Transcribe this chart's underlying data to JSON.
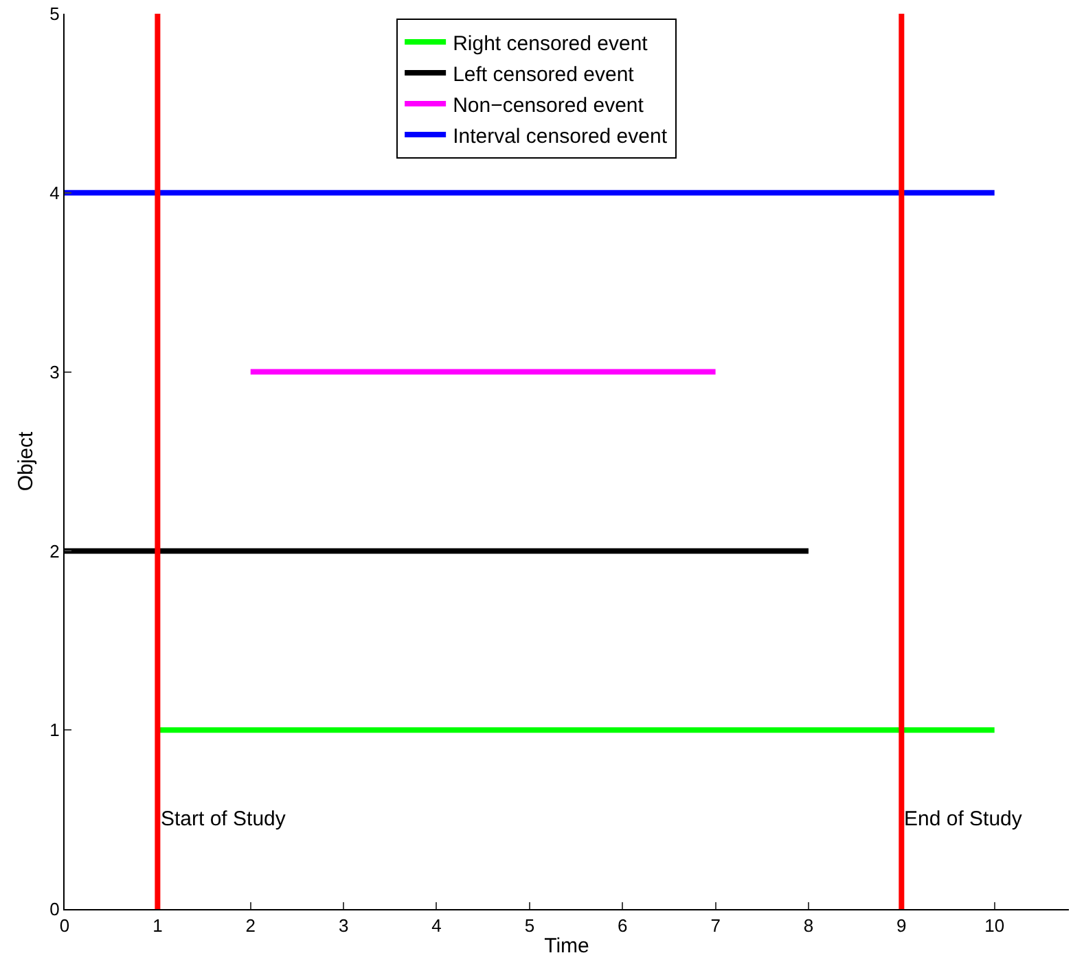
{
  "chart_data": {
    "type": "line",
    "xlabel": "Time",
    "ylabel": "Object",
    "xlim": [
      0,
      10.8
    ],
    "ylim": [
      0,
      5
    ],
    "xticks": [
      0,
      1,
      2,
      3,
      4,
      5,
      6,
      7,
      8,
      9,
      10
    ],
    "yticks": [
      0,
      1,
      2,
      3,
      4,
      5
    ],
    "grid": false,
    "legend": "top",
    "marker": "none",
    "line_style": "solid",
    "series": [
      {
        "name": "Right censored event",
        "color": "#00ff00",
        "x": [
          1,
          10
        ],
        "values": [
          1,
          1
        ]
      },
      {
        "name": "Left censored event",
        "color": "#000000",
        "x": [
          0,
          8
        ],
        "values": [
          2,
          2
        ]
      },
      {
        "name": "Non−censored event",
        "color": "#ff00ff",
        "x": [
          2,
          7
        ],
        "values": [
          3,
          3
        ]
      },
      {
        "name": "Interval censored event",
        "color": "#0000ff",
        "x": [
          0,
          10
        ],
        "values": [
          4,
          4
        ]
      }
    ],
    "ref_lines": [
      {
        "axis": "x",
        "value": 1,
        "label": "Start of Study",
        "color": "#ff0000"
      },
      {
        "axis": "x",
        "value": 9,
        "label": "End of Study",
        "color": "#ff0000"
      }
    ]
  }
}
